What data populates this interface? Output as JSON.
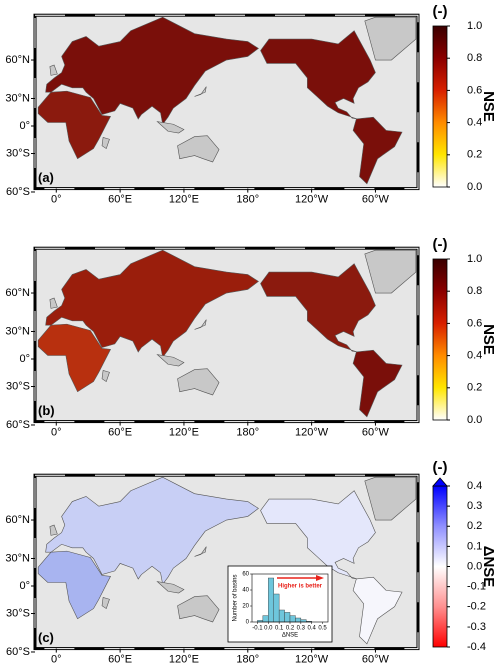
{
  "map": {
    "lon_ticks": [
      {
        "value": 0,
        "label": "0°"
      },
      {
        "value": 60,
        "label": "60°E"
      },
      {
        "value": 120,
        "label": "120°E"
      },
      {
        "value": 180,
        "label": "180°"
      },
      {
        "value": 240,
        "label": "120°W"
      },
      {
        "value": 300,
        "label": "60°W"
      }
    ],
    "lat_ticks": [
      {
        "value": 60,
        "label": "60°N"
      },
      {
        "value": 30,
        "label": "30°N"
      },
      {
        "value": 0,
        "label": "0°"
      },
      {
        "value": -30,
        "label": "30°S"
      },
      {
        "value": -60,
        "label": "60°S"
      }
    ]
  },
  "panels": [
    {
      "label": "(a)",
      "colorbar": {
        "title": "NSE",
        "unit": "(-)",
        "lim": [
          0,
          1
        ],
        "ticks": [
          {
            "value": 0,
            "label": "0.0"
          },
          {
            "value": 0.2,
            "label": "0.2"
          },
          {
            "value": 0.4,
            "label": "0.4"
          },
          {
            "value": 0.6,
            "label": "0.6"
          },
          {
            "value": 0.8,
            "label": "0.8"
          },
          {
            "value": 1,
            "label": "1.0"
          }
        ]
      }
    },
    {
      "label": "(b)",
      "colorbar": {
        "title": "NSE",
        "unit": "(-)",
        "lim": [
          0,
          1
        ],
        "ticks": [
          {
            "value": 0,
            "label": "0.0"
          },
          {
            "value": 0.2,
            "label": "0.2"
          },
          {
            "value": 0.4,
            "label": "0.4"
          },
          {
            "value": 0.6,
            "label": "0.6"
          },
          {
            "value": 0.8,
            "label": "0.8"
          },
          {
            "value": 1,
            "label": "1.0"
          }
        ]
      }
    },
    {
      "label": "(c)",
      "colorbar": {
        "title": "ΔNSE",
        "unit": "(-)",
        "lim": [
          -0.4,
          0.4
        ],
        "ticks": [
          -0.4,
          -0.3,
          -0.2,
          -0.1,
          {
            "value": 0,
            "label": "0.0"
          },
          0.1,
          0.2,
          0.3,
          0.4
        ]
      }
    }
  ],
  "inset": {
    "ylabel": "Number of basins",
    "xlabel": "ΔNSE",
    "annotation": "Higher is better",
    "xlim": [
      -0.15,
      0.55
    ],
    "ylim": [
      0,
      60
    ],
    "xticks": [
      -0.1,
      {
        "value": 0,
        "label": "0.0"
      },
      0.1,
      0.2,
      0.3,
      0.4,
      0.5
    ],
    "yticks": [
      0,
      20,
      40,
      60
    ],
    "bins": [
      -0.1,
      -0.05,
      0,
      0.05,
      0.1,
      0.15,
      0.2,
      0.25,
      0.3,
      0.35,
      0.4
    ],
    "counts": [
      2,
      8,
      55,
      35,
      15,
      12,
      8,
      5,
      3,
      1
    ],
    "color": "#6ec6dc"
  }
}
